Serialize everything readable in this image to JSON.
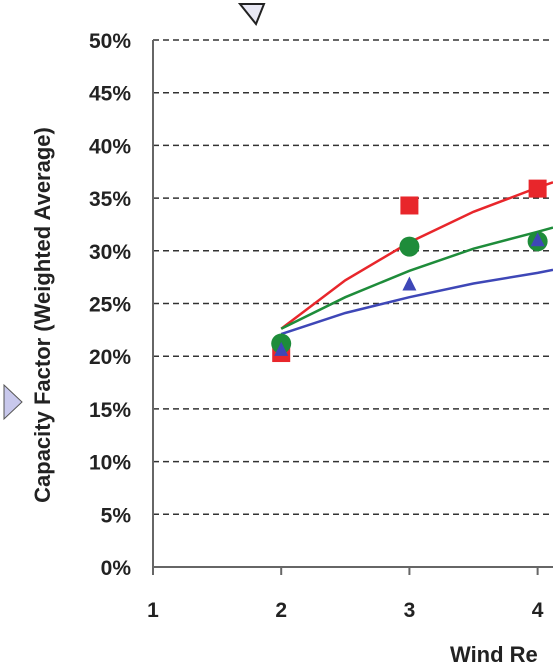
{
  "chart_data": {
    "type": "scatter",
    "title": "",
    "xlabel": "Wind Re",
    "ylabel": "Capacity Factor (Weighted Average)",
    "xlim": [
      1,
      4.12
    ],
    "ylim": [
      0,
      50
    ],
    "x_ticks": [
      "1",
      "2",
      "3",
      "4"
    ],
    "y_ticks": [
      "0%",
      "5%",
      "10%",
      "15%",
      "20%",
      "25%",
      "30%",
      "35%",
      "40%",
      "45%",
      "50%"
    ],
    "grid": "horizontal dashed",
    "series": [
      {
        "marker": "square",
        "color": "#e8262b",
        "points": [
          {
            "x": 2,
            "y": 20.3
          },
          {
            "x": 3,
            "y": 34.3
          },
          {
            "x": 4,
            "y": 35.9
          }
        ],
        "trend": [
          {
            "x": 2,
            "y": 22.6
          },
          {
            "x": 2.5,
            "y": 27.2
          },
          {
            "x": 3,
            "y": 30.8
          },
          {
            "x": 3.5,
            "y": 33.7
          },
          {
            "x": 4,
            "y": 36.0
          },
          {
            "x": 4.12,
            "y": 36.5
          }
        ]
      },
      {
        "marker": "circle",
        "color": "#1e8c3a",
        "points": [
          {
            "x": 2,
            "y": 21.2
          },
          {
            "x": 3,
            "y": 30.4
          },
          {
            "x": 4,
            "y": 30.9
          }
        ],
        "trend": [
          {
            "x": 2,
            "y": 22.6
          },
          {
            "x": 2.5,
            "y": 25.6
          },
          {
            "x": 3,
            "y": 28.1
          },
          {
            "x": 3.5,
            "y": 30.2
          },
          {
            "x": 4,
            "y": 31.8
          },
          {
            "x": 4.12,
            "y": 32.2
          }
        ]
      },
      {
        "marker": "triangle",
        "color": "#3e47b7",
        "points": [
          {
            "x": 2,
            "y": 20.6
          },
          {
            "x": 3,
            "y": 26.8
          },
          {
            "x": 4,
            "y": 31.0
          }
        ],
        "trend": [
          {
            "x": 2,
            "y": 22.1
          },
          {
            "x": 2.5,
            "y": 24.1
          },
          {
            "x": 3,
            "y": 25.6
          },
          {
            "x": 3.5,
            "y": 26.9
          },
          {
            "x": 4,
            "y": 27.9
          },
          {
            "x": 4.12,
            "y": 28.2
          }
        ]
      }
    ]
  }
}
